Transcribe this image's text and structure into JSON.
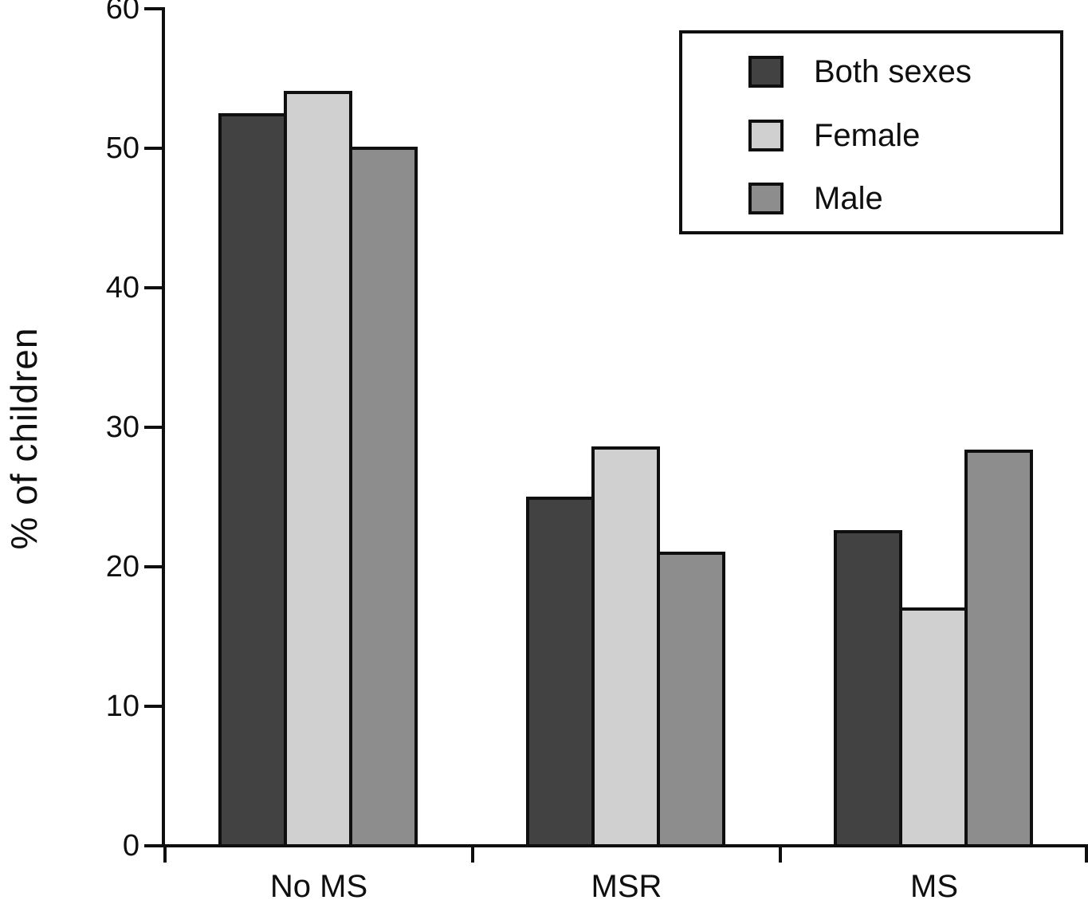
{
  "chart_data": {
    "type": "bar",
    "title": "",
    "xlabel": "",
    "ylabel": "% of children",
    "categories": [
      "No MS",
      "MSR",
      "MS"
    ],
    "series": [
      {
        "name": "Both sexes",
        "color": "#424242",
        "values": [
          52.5,
          25.0,
          22.6
        ]
      },
      {
        "name": "Female",
        "color": "#d0d0d0",
        "values": [
          54.1,
          28.6,
          17.1
        ]
      },
      {
        "name": "Male",
        "color": "#8d8d8d",
        "values": [
          50.1,
          21.1,
          28.4
        ]
      }
    ],
    "ylim": [
      0,
      60
    ],
    "yticks": [
      0,
      10,
      20,
      30,
      40,
      50,
      60
    ],
    "ytick_labels": [
      "0",
      "10",
      "20",
      "30",
      "40",
      "50",
      "60"
    ],
    "grid": false,
    "legend_position": "top-right",
    "axis_color": "#0f0f0f",
    "background_color": "#ffffff",
    "bar_border_color": "#0f0f0f"
  }
}
